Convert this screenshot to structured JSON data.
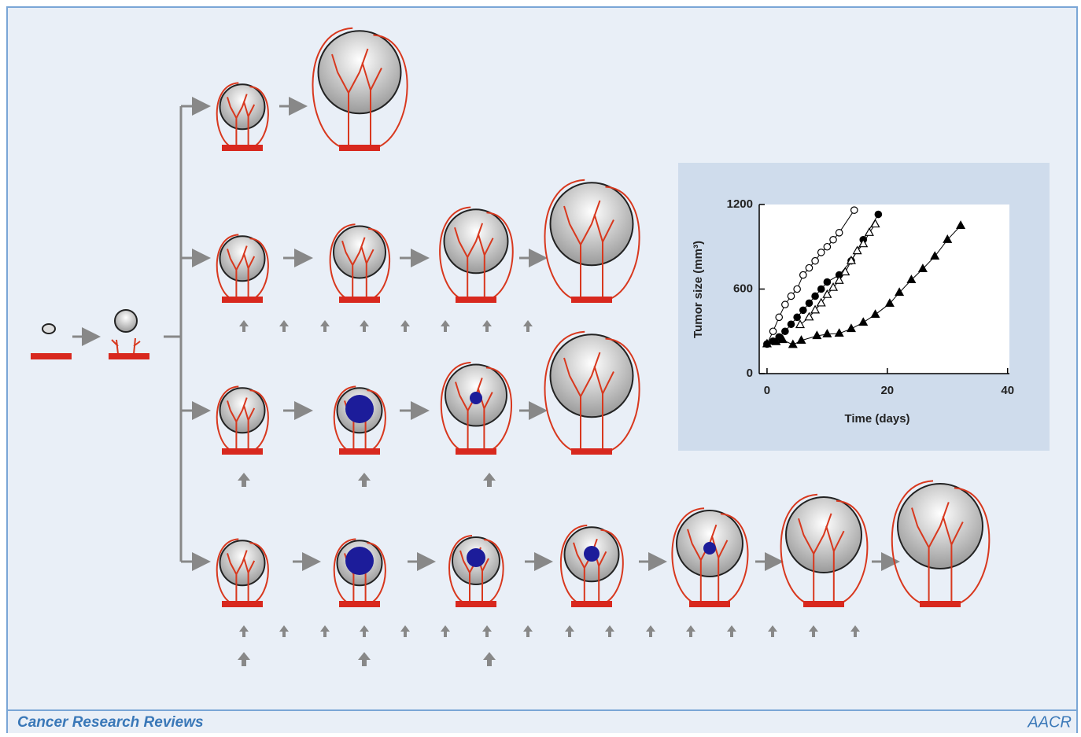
{
  "chart_data": {
    "type": "line",
    "x_label": "Time (days)",
    "y_label": "Tumor size (mm³)",
    "xlim": [
      -1.3,
      40.3
    ],
    "ylim": [
      0,
      1200
    ],
    "xticks": [
      0,
      20,
      40
    ],
    "yticks": [
      0,
      600,
      1200
    ],
    "series": [
      {
        "marker": "circle",
        "filled": false,
        "color": "#000000",
        "x": [
          0,
          1,
          2,
          3,
          4,
          5,
          6,
          7,
          8,
          9,
          10,
          11,
          12,
          14.5
        ],
        "values": [
          210,
          300,
          400,
          490,
          550,
          600,
          700,
          750,
          800,
          860,
          900,
          950,
          1000,
          1160
        ]
      },
      {
        "marker": "circle",
        "filled": true,
        "color": "#000000",
        "x": [
          0,
          1,
          2,
          3,
          4,
          5,
          6,
          7,
          8,
          9,
          10,
          12,
          14,
          16,
          18.5
        ],
        "values": [
          210,
          230,
          260,
          300,
          350,
          400,
          450,
          500,
          550,
          600,
          650,
          700,
          800,
          950,
          1130
        ]
      },
      {
        "marker": "triangle",
        "filled": false,
        "color": "#000000",
        "x": [
          5.5,
          7,
          8,
          9,
          10,
          11,
          12,
          13,
          14,
          15,
          16,
          17,
          18
        ],
        "values": [
          346,
          400,
          450,
          500,
          560,
          610,
          660,
          720,
          800,
          870,
          920,
          1000,
          1060
        ]
      },
      {
        "marker": "triangle",
        "filled": true,
        "color": "#000000",
        "x": [
          0,
          1.5,
          2.6,
          4.3,
          5.7,
          8.3,
          10,
          12,
          14,
          16,
          18,
          20.4,
          22,
          24,
          25.9,
          27.9,
          30,
          32.2
        ],
        "values": [
          210,
          225,
          240,
          205,
          235,
          268,
          280,
          285,
          318,
          363,
          419,
          497,
          575,
          665,
          743,
          832,
          950,
          1050
        ]
      }
    ]
  },
  "footer": {
    "journal": "Cancer Research Reviews",
    "logo": "AACR"
  }
}
